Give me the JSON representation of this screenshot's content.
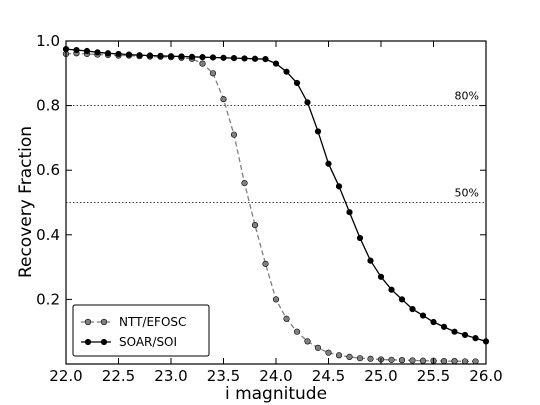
{
  "chart_data": {
    "type": "line",
    "xlabel": "i magnitude",
    "ylabel": "Recovery Fraction",
    "xlim": [
      22.0,
      26.0
    ],
    "ylim": [
      0.0,
      1.0
    ],
    "xticks": [
      "22.0",
      "22.5",
      "23.0",
      "23.5",
      "24.0",
      "24.5",
      "25.0",
      "25.5",
      "26.0"
    ],
    "yticks": [
      "0.2",
      "0.4",
      "0.6",
      "0.8",
      "1.0"
    ],
    "reference_lines": [
      {
        "y": 1.0,
        "label": ""
      },
      {
        "y": 0.8,
        "label": "80%"
      },
      {
        "y": 0.5,
        "label": "50%"
      }
    ],
    "grid": false,
    "legend_position": "bottom-left",
    "series": [
      {
        "name": "NTT/EFOSC",
        "color": "#808080",
        "line_style": "dashed",
        "x": [
          22.0,
          22.1,
          22.2,
          22.3,
          22.4,
          22.5,
          22.6,
          22.7,
          22.8,
          22.9,
          23.0,
          23.1,
          23.2,
          23.3,
          23.4,
          23.5,
          23.6,
          23.7,
          23.8,
          23.9,
          24.0,
          24.1,
          24.2,
          24.3,
          24.4,
          24.5,
          24.6,
          24.7,
          24.8,
          24.9,
          25.0,
          25.1,
          25.2,
          25.3,
          25.4,
          25.5,
          25.6,
          25.7,
          25.8,
          25.9
        ],
        "y": [
          0.96,
          0.962,
          0.96,
          0.958,
          0.957,
          0.955,
          0.955,
          0.953,
          0.952,
          0.951,
          0.95,
          0.948,
          0.945,
          0.93,
          0.9,
          0.82,
          0.71,
          0.56,
          0.43,
          0.31,
          0.2,
          0.14,
          0.1,
          0.07,
          0.05,
          0.035,
          0.027,
          0.022,
          0.018,
          0.016,
          0.014,
          0.013,
          0.012,
          0.011,
          0.01,
          0.01,
          0.009,
          0.009,
          0.008,
          0.008
        ]
      },
      {
        "name": "SOAR/SOI",
        "color": "#000000",
        "line_style": "solid",
        "x": [
          22.0,
          22.1,
          22.2,
          22.3,
          22.4,
          22.5,
          22.6,
          22.7,
          22.8,
          22.9,
          23.0,
          23.1,
          23.2,
          23.3,
          23.4,
          23.5,
          23.6,
          23.7,
          23.8,
          23.9,
          24.0,
          24.1,
          24.2,
          24.3,
          24.4,
          24.5,
          24.6,
          24.7,
          24.8,
          24.9,
          25.0,
          25.1,
          25.2,
          25.3,
          25.4,
          25.5,
          25.6,
          25.7,
          25.8,
          25.9,
          26.0
        ],
        "y": [
          0.975,
          0.972,
          0.969,
          0.965,
          0.962,
          0.96,
          0.958,
          0.956,
          0.955,
          0.954,
          0.953,
          0.952,
          0.951,
          0.95,
          0.949,
          0.948,
          0.947,
          0.946,
          0.945,
          0.944,
          0.93,
          0.905,
          0.87,
          0.81,
          0.72,
          0.62,
          0.55,
          0.47,
          0.39,
          0.32,
          0.27,
          0.23,
          0.2,
          0.17,
          0.15,
          0.13,
          0.115,
          0.1,
          0.09,
          0.08,
          0.07
        ]
      }
    ]
  }
}
